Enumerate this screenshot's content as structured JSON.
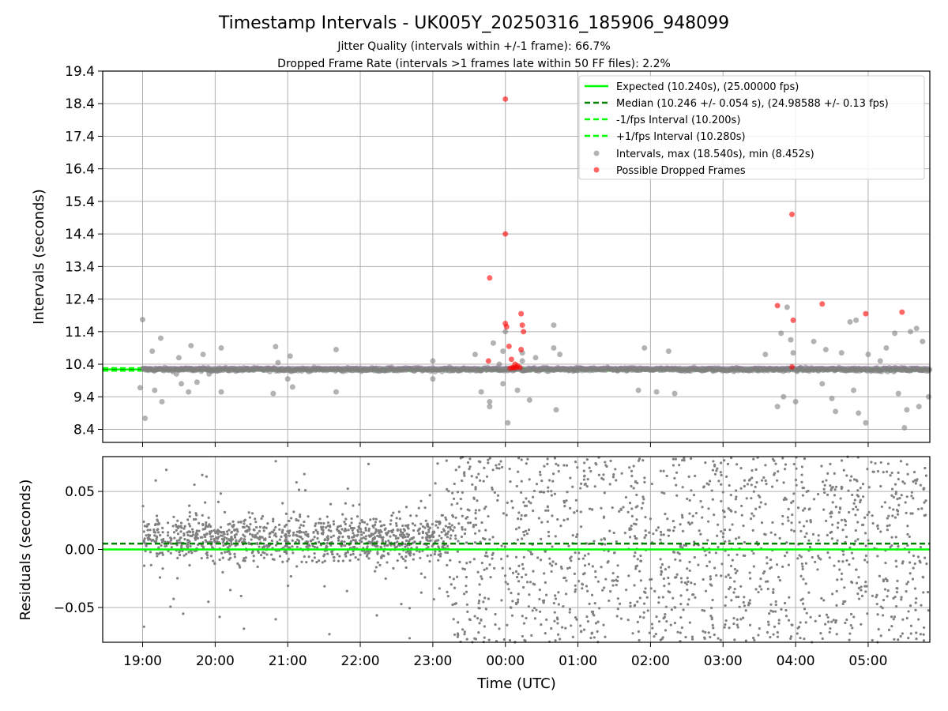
{
  "figure": {
    "title": "Timestamp Intervals - UK005Y_20250316_185906_948099",
    "subtitle_1": "Jitter Quality (intervals within +/-1 frame): 66.7%",
    "subtitle_2": "Dropped Frame Rate (intervals >1 frames late within 50 FF files): 2.2%",
    "xlabel": "Time (UTC)",
    "x_ticks": [
      "19:00",
      "20:00",
      "21:00",
      "22:00",
      "23:00",
      "00:00",
      "01:00",
      "02:00",
      "03:00",
      "04:00",
      "05:00"
    ]
  },
  "colors": {
    "expected": "#00ff00",
    "median": "#008000",
    "interval_bounds": "#00ff00",
    "intervals": "#808080",
    "dropped": "#ff0000",
    "grid": "#b0b0b0"
  },
  "chart_data": [
    {
      "type": "scatter",
      "panel": "top",
      "ylabel": "Intervals (seconds)",
      "ylim": [
        8.0,
        19.4
      ],
      "y_ticks": [
        "19.4",
        "18.4",
        "17.4",
        "16.4",
        "15.4",
        "14.4",
        "13.4",
        "12.4",
        "11.4",
        "10.4",
        "9.4",
        "8.4"
      ],
      "x_range_hours": [
        18.45,
        29.85
      ],
      "grid": true,
      "legend_position": "top-right",
      "reference_lines": [
        {
          "name": "Expected (10.240s), (25.00000 fps)",
          "y": 10.24,
          "style": "solid",
          "color": "#00ff00"
        },
        {
          "name": "Median (10.246 +/- 0.054 s), (24.98588 +/- 0.13 fps)",
          "y": 10.246,
          "style": "dashed",
          "color": "#008000"
        },
        {
          "name": "-1/fps Interval (10.200s)",
          "y": 10.2,
          "style": "dashed",
          "color": "#00ff00"
        },
        {
          "name": "+1/fps Interval (10.280s)",
          "y": 10.28,
          "style": "dashed",
          "color": "#00ff00"
        }
      ],
      "series": [
        {
          "name": "Intervals, max (18.540s), min (8.452s)",
          "marker": "circle",
          "color": "#808080",
          "note_points": "dense band near 10.24 s across the whole night; outliers listed",
          "points": [
            [
              "19:00",
              11.77
            ],
            [
              "19:02",
              8.74
            ],
            [
              "18:58",
              9.68
            ],
            [
              "19:08",
              10.8
            ],
            [
              "19:10",
              9.6
            ],
            [
              "19:15",
              11.2
            ],
            [
              "19:16",
              9.25
            ],
            [
              "19:28",
              10.1
            ],
            [
              "19:30",
              10.6
            ],
            [
              "19:32",
              9.8
            ],
            [
              "19:38",
              9.55
            ],
            [
              "19:40",
              10.97
            ],
            [
              "19:45",
              9.85
            ],
            [
              "19:50",
              10.7
            ],
            [
              "19:55",
              10.1
            ],
            [
              "20:05",
              9.55
            ],
            [
              "20:05",
              10.9
            ],
            [
              "20:52",
              10.45
            ],
            [
              "20:48",
              9.5
            ],
            [
              "20:50",
              10.94
            ],
            [
              "21:00",
              9.95
            ],
            [
              "21:02",
              10.65
            ],
            [
              "21:04",
              9.7
            ],
            [
              "21:40",
              9.55
            ],
            [
              "21:40",
              10.85
            ],
            [
              "23:00",
              9.95
            ],
            [
              "23:00",
              10.5
            ],
            [
              "23:35",
              10.7
            ],
            [
              "23:40",
              9.55
            ],
            [
              "23:55",
              10.4
            ],
            [
              "23:50",
              11.05
            ],
            [
              "23:47",
              9.25
            ],
            [
              "23:47",
              9.1
            ],
            [
              "23:58",
              9.8
            ],
            [
              "23:58",
              10.8
            ],
            [
              "00:00",
              11.4
            ],
            [
              "00:02",
              8.6
            ],
            [
              "00:10",
              9.6
            ],
            [
              "00:14",
              10.5
            ],
            [
              "00:14",
              10.75
            ],
            [
              "00:20",
              9.3
            ],
            [
              "00:25",
              10.6
            ],
            [
              "00:40",
              10.9
            ],
            [
              "00:40",
              11.6
            ],
            [
              "00:42",
              9.0
            ],
            [
              "00:45",
              10.7
            ],
            [
              "01:50",
              9.6
            ],
            [
              "01:55",
              10.9
            ],
            [
              "02:05",
              9.55
            ],
            [
              "02:15",
              10.8
            ],
            [
              "02:20",
              9.5
            ],
            [
              "03:35",
              10.7
            ],
            [
              "03:45",
              9.1
            ],
            [
              "03:48",
              11.35
            ],
            [
              "03:50",
              9.4
            ],
            [
              "03:53",
              12.15
            ],
            [
              "03:56",
              11.15
            ],
            [
              "03:58",
              10.75
            ],
            [
              "04:00",
              9.25
            ],
            [
              "04:15",
              11.1
            ],
            [
              "04:22",
              9.8
            ],
            [
              "04:25",
              10.85
            ],
            [
              "04:30",
              9.35
            ],
            [
              "04:33",
              8.95
            ],
            [
              "04:38",
              10.75
            ],
            [
              "04:45",
              11.7
            ],
            [
              "04:48",
              9.6
            ],
            [
              "04:50",
              11.75
            ],
            [
              "04:52",
              8.9
            ],
            [
              "04:58",
              8.6
            ],
            [
              "05:00",
              10.7
            ],
            [
              "05:10",
              10.5
            ],
            [
              "05:15",
              10.9
            ],
            [
              "05:22",
              11.35
            ],
            [
              "05:25",
              9.5
            ],
            [
              "05:30",
              8.45
            ],
            [
              "05:32",
              9.0
            ],
            [
              "05:35",
              11.4
            ],
            [
              "05:40",
              11.5
            ],
            [
              "05:45",
              11.1
            ],
            [
              "05:50",
              9.4
            ],
            [
              "05:42",
              9.1
            ]
          ]
        },
        {
          "name": "Possible Dropped Frames",
          "marker": "circle",
          "color": "#ff0000",
          "points": [
            [
              "00:00",
              18.54
            ],
            [
              "00:00",
              14.4
            ],
            [
              "23:47",
              13.05
            ],
            [
              "00:00",
              11.65
            ],
            [
              "00:01",
              11.55
            ],
            [
              "00:13",
              11.95
            ],
            [
              "00:14",
              11.6
            ],
            [
              "00:15",
              11.4
            ],
            [
              "00:03",
              10.95
            ],
            [
              "00:13",
              10.85
            ],
            [
              "00:05",
              10.55
            ],
            [
              "00:08",
              10.4
            ],
            [
              "00:10",
              10.35
            ],
            [
              "00:06",
              10.3
            ],
            [
              "00:04",
              10.28
            ],
            [
              "00:09",
              10.3
            ],
            [
              "00:07",
              10.29
            ],
            [
              "00:12",
              10.3
            ],
            [
              "23:46",
              10.5
            ],
            [
              "03:45",
              12.2
            ],
            [
              "03:57",
              15.0
            ],
            [
              "03:58",
              11.75
            ],
            [
              "04:22",
              12.25
            ],
            [
              "04:58",
              11.95
            ],
            [
              "05:28",
              12.0
            ],
            [
              "03:57",
              10.32
            ]
          ]
        }
      ]
    },
    {
      "type": "scatter",
      "panel": "bottom",
      "ylabel": "Residuals (seconds)",
      "ylim": [
        -0.08,
        0.08
      ],
      "y_ticks": [
        "0.05",
        "0.00",
        "−0.05"
      ],
      "y_tick_values": [
        0.05,
        0.0,
        -0.05
      ],
      "x_range_hours": [
        18.45,
        29.85
      ],
      "grid": true,
      "reference_lines": [
        {
          "y": 0.0,
          "style": "solid",
          "color": "#00ff00"
        },
        {
          "y": 0.005,
          "style": "dashed",
          "color": "#008000"
        }
      ],
      "series": [
        {
          "marker": "point",
          "color": "#808080",
          "note_points": "residual cloud: from 19:00 to ~23:15 concentrated within about -0.03..+0.035 s (band centered near +0.01); after ~23:15 spread uniformly over the full -0.08..+0.08 s range",
          "segments": [
            {
              "from": "19:00",
              "to": "23:15",
              "density": 260,
              "spread": [
                -0.035,
                0.04
              ],
              "center": 0.01,
              "outlier_fraction": 0.08
            },
            {
              "from": "23:15",
              "to": "05:50",
              "density": 220,
              "spread": [
                -0.08,
                0.08
              ],
              "center": 0.0,
              "outlier_fraction": 0.0
            }
          ]
        }
      ]
    }
  ]
}
